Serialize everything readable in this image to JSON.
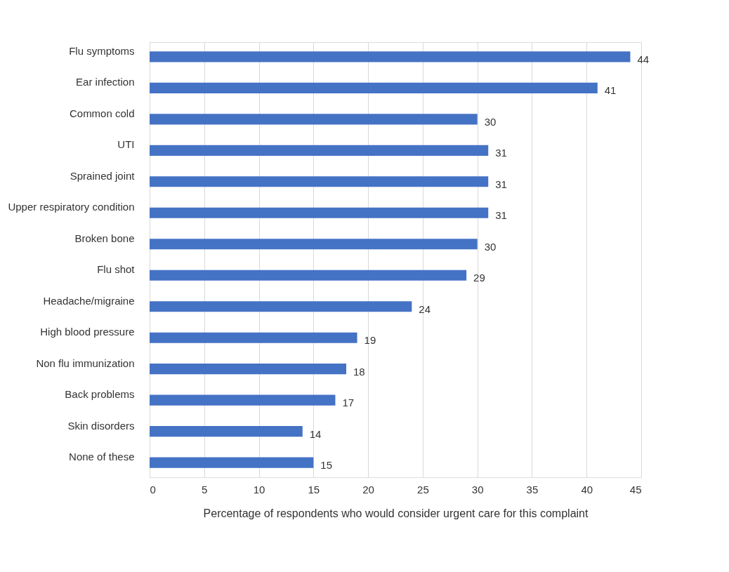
{
  "chart_data": {
    "type": "bar",
    "orientation": "horizontal",
    "xlabel": "Percentage of respondents who would consider urgent care for this complaint",
    "categories": [
      "Flu symptoms",
      "Ear infection",
      "Common cold",
      "UTI",
      "Sprained joint",
      "Upper respiratory condition",
      "Broken bone",
      "Flu shot",
      "Headache/migraine",
      "High blood pressure",
      "Non flu immunization",
      "Back problems",
      "Skin disorders",
      "None of these"
    ],
    "values": [
      44,
      41,
      30,
      31,
      31,
      31,
      30,
      29,
      24,
      19,
      18,
      17,
      14,
      15
    ],
    "color": "#4472c4",
    "xlim": [
      0,
      45
    ],
    "xticks": [
      0,
      5,
      10,
      15,
      20,
      25,
      30,
      35,
      40,
      45
    ],
    "grid": "x",
    "data_labels": true
  }
}
